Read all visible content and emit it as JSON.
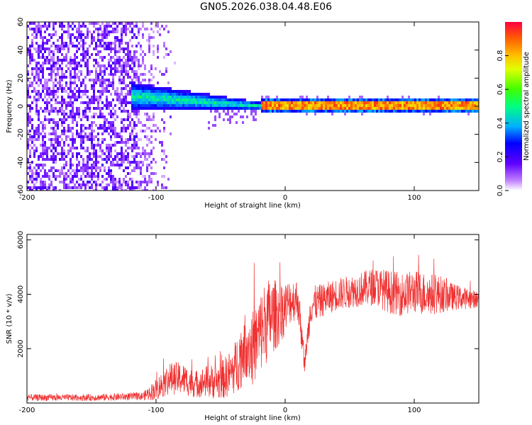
{
  "title": "GN05.2026.038.04.48.E06",
  "colors": {
    "line": "#f03030",
    "axis": "#000000",
    "background": "#ffffff"
  },
  "chart_data": [
    {
      "type": "heatmap",
      "xlabel": "Height of straight line (km)",
      "ylabel": "Frequency (Hz)",
      "xlim": [
        -200,
        150
      ],
      "ylim": [
        -60,
        60
      ],
      "xticks": [
        -200,
        -100,
        0,
        100
      ],
      "xtick_labels": [
        "-200",
        "-100",
        "0",
        "100"
      ],
      "yticks": [
        -60,
        -40,
        -20,
        0,
        20,
        40,
        60
      ],
      "ytick_labels": [
        "-60",
        "-40",
        "-20",
        "0",
        "20",
        "40",
        "60"
      ],
      "colorbar": {
        "label": "Normalized spectral amplitude",
        "range": [
          0,
          1
        ],
        "ticks": [
          0.0,
          0.2,
          0.4,
          0.6,
          0.8
        ],
        "tick_labels": [
          "0.0",
          "0.2",
          "0.4",
          "0.6",
          "0.8"
        ],
        "colormap": "rainbow"
      },
      "regions": [
        {
          "x_range": [
            -200,
            -115
          ],
          "f_range": [
            -60,
            60
          ],
          "amplitude": 0.15,
          "description": "broadband noise"
        },
        {
          "x_range": [
            -115,
            -85
          ],
          "f_range": [
            -60,
            60
          ],
          "amplitude": 0.08,
          "description": "sparse noise"
        },
        {
          "x_range": [
            -120,
            -20
          ],
          "f_range": [
            -15,
            20
          ],
          "amplitude": 0.35,
          "description": "converging signal"
        },
        {
          "x_range": [
            -20,
            150
          ],
          "f_range": [
            0,
            3
          ],
          "amplitude": 0.95,
          "description": "narrow line near 0-2 Hz"
        }
      ]
    },
    {
      "type": "line",
      "xlabel": "Height of straight line (km)",
      "ylabel": "SNR (10 * v/v)",
      "xlim": [
        -200,
        150
      ],
      "ylim": [
        0,
        6200
      ],
      "xticks": [
        -200,
        -100,
        0,
        100
      ],
      "xtick_labels": [
        "-200",
        "-100",
        "0",
        "100"
      ],
      "yticks": [
        2000,
        4000,
        6000
      ],
      "ytick_labels": [
        "2000",
        "4000",
        "6000"
      ],
      "series": [
        {
          "name": "SNR",
          "color": "#f03030",
          "x": [
            -200,
            -150,
            -110,
            -100,
            -90,
            -80,
            -70,
            -60,
            -50,
            -40,
            -35,
            -30,
            -25,
            -20,
            -15,
            -10,
            -5,
            0,
            5,
            10,
            15,
            20,
            30,
            40,
            50,
            60,
            70,
            80,
            90,
            100,
            110,
            120,
            130,
            140,
            150
          ],
          "y": [
            200,
            200,
            250,
            500,
            900,
            900,
            700,
            800,
            800,
            1200,
            1700,
            2200,
            2000,
            2500,
            3000,
            3200,
            3300,
            3500,
            3800,
            3800,
            1400,
            3600,
            3800,
            4000,
            4100,
            4200,
            4300,
            4100,
            4000,
            4100,
            4000,
            4000,
            3900,
            3850,
            3800
          ],
          "noise_amplitude": [
            120,
            120,
            150,
            400,
            600,
            600,
            500,
            600,
            700,
            900,
            1200,
            1300,
            1400,
            1500,
            1600,
            1400,
            1200,
            1000,
            800,
            800,
            300,
            700,
            600,
            600,
            600,
            650,
            700,
            800,
            800,
            800,
            800,
            700,
            500,
            400,
            300
          ]
        }
      ]
    }
  ]
}
